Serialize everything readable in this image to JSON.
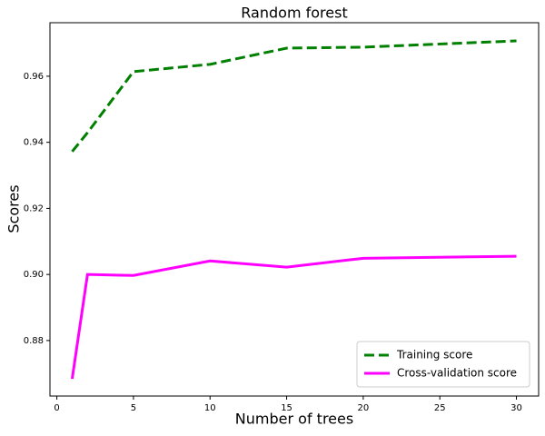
{
  "chart_data": {
    "type": "line",
    "title": "Random forest",
    "xlabel": "Number of trees",
    "ylabel": "Scores",
    "x": [
      1,
      2,
      5,
      10,
      15,
      20,
      30
    ],
    "series": [
      {
        "name": "Training score",
        "color": "#008000",
        "dash": true,
        "values": [
          0.9372,
          0.9429,
          0.9614,
          0.9636,
          0.9685,
          0.9688,
          0.9707
        ]
      },
      {
        "name": "Cross-validation score",
        "color": "#ff00ff",
        "dash": false,
        "values": [
          0.8684,
          0.9,
          0.8997,
          0.9041,
          0.9022,
          0.9049,
          0.9055
        ]
      }
    ],
    "xlim": [
      -0.45,
      31.45
    ],
    "xticks": [
      0,
      5,
      10,
      15,
      20,
      25,
      30
    ],
    "ylim": [
      0.8632,
      0.9762
    ],
    "yticks": [
      0.88,
      {
        "value": 0.9,
        "label": "0.90"
      },
      0.92,
      0.94,
      0.96
    ],
    "legend": "lower right"
  }
}
